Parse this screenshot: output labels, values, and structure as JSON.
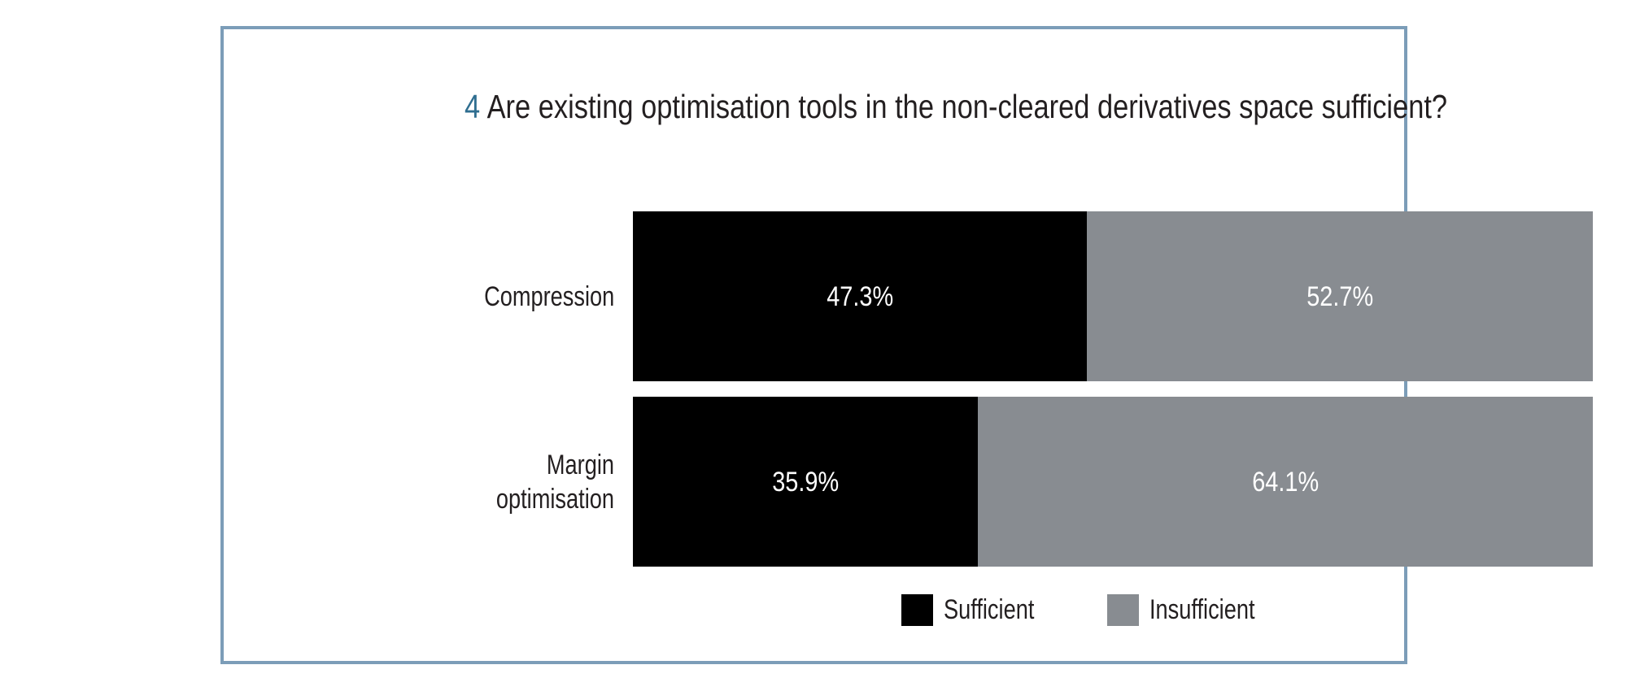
{
  "colors": {
    "panel_border": "#7c9db8",
    "question_number": "#2f6e90",
    "text": "#231f20",
    "sufficient": "#000000",
    "insufficient": "#888c91",
    "value_label_text": "#ffffff"
  },
  "chart_data": {
    "type": "bar",
    "orientation": "horizontal",
    "stacked": true,
    "title_number": "4",
    "title": "Are existing optimisation tools in the non-cleared derivatives space sufficient?",
    "categories": [
      "Compression",
      "Margin optimisation"
    ],
    "series": [
      {
        "name": "Sufficient",
        "color": "#000000",
        "values": [
          47.3,
          35.9
        ],
        "labels": [
          "47.3%",
          "35.9%"
        ]
      },
      {
        "name": "Insufficient",
        "color": "#888c91",
        "values": [
          52.7,
          64.1
        ],
        "labels": [
          "52.7%",
          "64.1%"
        ]
      }
    ],
    "xlim": [
      0,
      100
    ],
    "value_label_format": "percent_one_decimal",
    "grid": false,
    "axes_visible": false,
    "legend_position": "bottom"
  }
}
